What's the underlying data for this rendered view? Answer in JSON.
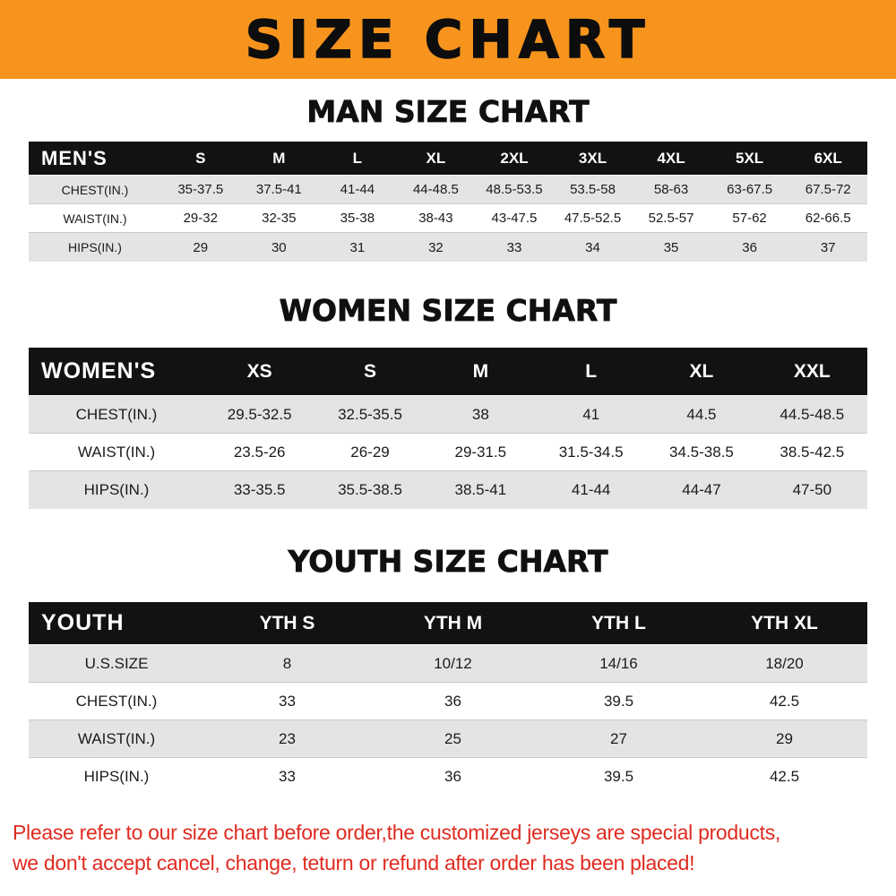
{
  "banner": {
    "title": "SIZE CHART"
  },
  "men": {
    "heading": "MAN SIZE CHART",
    "header": [
      "MEN'S",
      "S",
      "M",
      "L",
      "XL",
      "2XL",
      "3XL",
      "4XL",
      "5XL",
      "6XL"
    ],
    "rows": [
      [
        "CHEST(IN.)",
        "35-37.5",
        "37.5-41",
        "41-44",
        "44-48.5",
        "48.5-53.5",
        "53.5-58",
        "58-63",
        "63-67.5",
        "67.5-72"
      ],
      [
        "WAIST(IN.)",
        "29-32",
        "32-35",
        "35-38",
        "38-43",
        "43-47.5",
        "47.5-52.5",
        "52.5-57",
        "57-62",
        "62-66.5"
      ],
      [
        "HIPS(IN.)",
        "29",
        "30",
        "31",
        "32",
        "33",
        "34",
        "35",
        "36",
        "37"
      ]
    ]
  },
  "women": {
    "heading": "WOMEN SIZE CHART",
    "header": [
      "WOMEN'S",
      "XS",
      "S",
      "M",
      "L",
      "XL",
      "XXL"
    ],
    "rows": [
      [
        "CHEST(IN.)",
        "29.5-32.5",
        "32.5-35.5",
        "38",
        "41",
        "44.5",
        "44.5-48.5"
      ],
      [
        "WAIST(IN.)",
        "23.5-26",
        "26-29",
        "29-31.5",
        "31.5-34.5",
        "34.5-38.5",
        "38.5-42.5"
      ],
      [
        "HIPS(IN.)",
        "33-35.5",
        "35.5-38.5",
        "38.5-41",
        "41-44",
        "44-47",
        "47-50"
      ]
    ]
  },
  "youth": {
    "heading": "YOUTH SIZE CHART",
    "header": [
      "YOUTH",
      "YTH S",
      "YTH M",
      "YTH L",
      "YTH XL"
    ],
    "rows": [
      [
        "U.S.SIZE",
        "8",
        "10/12",
        "14/16",
        "18/20"
      ],
      [
        "CHEST(IN.)",
        "33",
        "36",
        "39.5",
        "42.5"
      ],
      [
        "WAIST(IN.)",
        "23",
        "25",
        "27",
        "29"
      ],
      [
        "HIPS(IN.)",
        "33",
        "36",
        "39.5",
        "42.5"
      ]
    ]
  },
  "footer": {
    "line1": "Please refer to our size chart before order,the customized jerseys are special products,",
    "line2": "we don't accept cancel, change, teturn or refund after order has been placed!"
  },
  "colors": {
    "banner-bg": "#F7941E",
    "table-header-bg": "#121212",
    "row-stripe": "#E4E4E4",
    "notice-red": "#E02B20"
  }
}
